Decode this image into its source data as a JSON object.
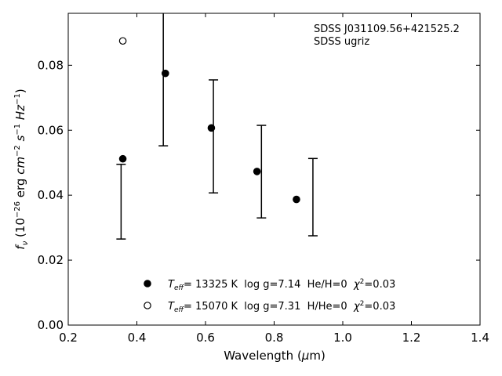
{
  "chart_data": {
    "type": "scatter",
    "xlabel": "Wavelength (μm)",
    "ylabel": "f_ν (10^-26 erg cm^-2 s^-1 Hz^-1)",
    "xlim": [
      0.2,
      1.4
    ],
    "ylim": [
      0.0,
      0.096
    ],
    "x_ticks": [
      "0.2",
      "0.4",
      "0.6",
      "0.8",
      "1.0",
      "1.2",
      "1.4"
    ],
    "y_ticks": [
      "0.00",
      "0.02",
      "0.04",
      "0.06",
      "0.08"
    ],
    "annotation": [
      "SDSS J031109.56+421525.2",
      "SDSS ugriz"
    ],
    "observed": {
      "x": [
        0.354,
        0.477,
        0.623,
        0.763,
        0.913
      ],
      "upper": [
        0.0495,
        0.0965,
        0.0755,
        0.0615,
        0.0513
      ],
      "lower": [
        0.0265,
        0.0552,
        0.0407,
        0.033,
        0.0275
      ]
    },
    "series": [
      {
        "marker": "filled",
        "x": [
          0.359,
          0.483,
          0.617,
          0.75,
          0.865
        ],
        "y": [
          0.0512,
          0.0775,
          0.0607,
          0.0473,
          0.0387
        ]
      },
      {
        "marker": "open",
        "x": [
          0.359
        ],
        "y": [
          0.0875
        ]
      }
    ],
    "legend": [
      {
        "marker": "filled",
        "teff_prefix": "T",
        "teff_sub": "eff",
        "text": "= 13325 K  log g=7.14  He/H=0  ",
        "chi": "χ",
        "chi_sup": "2",
        "chi_val": "=0.03"
      },
      {
        "marker": "open",
        "teff_prefix": "T",
        "teff_sub": "eff",
        "text": "= 15070 K  log g=7.31  H/He=0  ",
        "chi": "χ",
        "chi_sup": "2",
        "chi_val": "=0.03"
      }
    ],
    "legend_placement": "lower-center",
    "grid": false,
    "colors": {
      "marker": "#000000",
      "axes": "#000000"
    }
  }
}
